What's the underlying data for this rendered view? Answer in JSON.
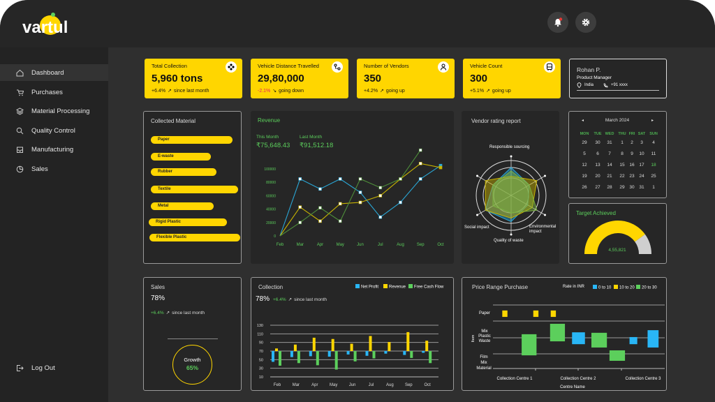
{
  "app": {
    "brand": "vartul"
  },
  "header": {
    "icons": [
      "bell-icon",
      "gear-icon"
    ]
  },
  "sidebar": {
    "items": [
      {
        "label": "Dashboard",
        "icon": "home-icon",
        "active": true
      },
      {
        "label": "Purchases",
        "icon": "cart-icon"
      },
      {
        "label": "Material Processing",
        "icon": "layers-icon"
      },
      {
        "label": "Quality Control",
        "icon": "search-icon"
      },
      {
        "label": "Manufacturing",
        "icon": "inbox-icon"
      },
      {
        "label": "Sales",
        "icon": "pie-icon"
      }
    ],
    "logout": "Log Out"
  },
  "kpis": [
    {
      "title": "Total Collection",
      "value": "5,960 tons",
      "change": "+6.4%",
      "note": "since last month",
      "icon": "diamond-icon",
      "change_color": "#111111"
    },
    {
      "title": "Vehicle Distance Travelled",
      "value": "29,80,000",
      "change": "-2.1%",
      "note": "going down",
      "icon": "route-icon",
      "change_color": "#e91e63"
    },
    {
      "title": "Number of Vendors",
      "value": "350",
      "change": "+4.2%",
      "note": "going up",
      "icon": "user-icon",
      "change_color": "#111111"
    },
    {
      "title": "Vehicle Count",
      "value": "300",
      "change": "+5.1%",
      "note": "going up",
      "icon": "bus-icon",
      "change_color": "#111111"
    }
  ],
  "profile": {
    "name": "Rohan P.",
    "role": "Product Manager",
    "location": "India",
    "phone": "+91 xxxx"
  },
  "collected": {
    "title": "Collected Material",
    "items": [
      {
        "label": "Paper",
        "share": 0.9
      },
      {
        "label": "E-waste",
        "share": 0.66
      },
      {
        "label": "Rubber",
        "share": 0.72
      },
      {
        "label": "Textile",
        "share": 0.96
      },
      {
        "label": "Metal",
        "share": 0.69
      },
      {
        "label": "Rigid Plastic",
        "share": 0.86
      },
      {
        "label": "Flexible Plastic",
        "share": 1.0
      }
    ]
  },
  "revenue": {
    "title": "Revenue",
    "this_month_label": "This Month",
    "this_month": "₹75,648.43",
    "last_month_label": "Last Month",
    "last_month": "₹91,512.18"
  },
  "vendor": {
    "title": "Vendor rating report",
    "axes": [
      "Responsible sourcing",
      "Environmental impact",
      "Quality of waste",
      "Social impact"
    ]
  },
  "calendar": {
    "month": "March 2024",
    "days": [
      "MON",
      "TUE",
      "WED",
      "THU",
      "FRI",
      "SAT",
      "SUN"
    ],
    "weeks": [
      [
        "29",
        "30",
        "31",
        "1",
        "2",
        "3",
        "4"
      ],
      [
        "5",
        "6",
        "7",
        "8",
        "9",
        "10",
        "11"
      ],
      [
        "12",
        "13",
        "14",
        "15",
        "16",
        "17",
        "18"
      ],
      [
        "19",
        "20",
        "21",
        "22",
        "23",
        "24",
        "25"
      ],
      [
        "26",
        "27",
        "28",
        "29",
        "30",
        "31",
        "1"
      ]
    ],
    "today": "18"
  },
  "target": {
    "title": "Target Achieved",
    "value": "4,55,821",
    "fraction": 0.8
  },
  "sales": {
    "title": "Sales",
    "value": "78%",
    "change": "+6.4%",
    "note": "since last month",
    "growth_label": "Growth",
    "growth": "65%"
  },
  "collection": {
    "title": "Collection",
    "value": "78%",
    "change": "+6.4%",
    "note": "since last month"
  },
  "price": {
    "title": "Price Range Purchase",
    "legend_title": "Rate in INR"
  },
  "chart_data": [
    {
      "type": "line",
      "categories": [
        "Feb",
        "Mar",
        "Apr",
        "May",
        "Jun",
        "Jul",
        "Aug",
        "Sep",
        "Oct"
      ],
      "ylim": [
        0,
        100000
      ],
      "yticks": [
        0,
        20000,
        40000,
        60000,
        80000,
        100000
      ],
      "series": [
        {
          "color": "#2aa7d6",
          "values": [
            0,
            85000,
            70000,
            85000,
            65000,
            28000,
            50000,
            85000,
            105000
          ]
        },
        {
          "color": "#c9b400",
          "values": [
            0,
            43000,
            22000,
            48000,
            50000,
            60000,
            85000,
            108000,
            102000
          ]
        },
        {
          "color": "#4e8d3a",
          "values": [
            0,
            20000,
            42000,
            22000,
            85000,
            72000,
            85000,
            128000,
            null
          ]
        }
      ]
    },
    {
      "type": "bar",
      "categories": [
        "Feb",
        "Mar",
        "Apr",
        "May",
        "Jun",
        "Jul",
        "Aug",
        "Sep",
        "Oct"
      ],
      "baseline": 70,
      "ylim": [
        10,
        130
      ],
      "yticks": [
        10,
        30,
        50,
        70,
        90,
        110,
        130
      ],
      "series": [
        {
          "name": "Net Profit",
          "color": "#29b6f6",
          "values": [
            45,
            56,
            58,
            57,
            62,
            59,
            64,
            61,
            66
          ]
        },
        {
          "name": "Revenue",
          "color": "#FFD600",
          "values": [
            76,
            85,
            101,
            98,
            87,
            105,
            91,
            114,
            94
          ]
        },
        {
          "name": "Free Cash Flow",
          "color": "#5ccf5c",
          "values": [
            36,
            42,
            37,
            27,
            46,
            53,
            null,
            54,
            42
          ]
        }
      ],
      "legend": "top-right"
    },
    {
      "type": "floating-range",
      "xlabel": "Centre Name",
      "ylabel": "Item",
      "xcategories": [
        "Collection Centre 1",
        "Collection Centre 2",
        "Collection Centre 3"
      ],
      "ycategories": [
        "Film Mix Material",
        "Mix Plastic Waste",
        "Paper"
      ],
      "legend": [
        {
          "name": "0 to 10",
          "color": "#29b6f6"
        },
        {
          "name": "10 to 20",
          "color": "#FFD600"
        },
        {
          "name": "20 to 30",
          "color": "#5ccf5c"
        }
      ],
      "boxes": [
        {
          "range": "10 to 20",
          "x": [
            0.82,
            0.9
          ],
          "y": [
            2.91,
            3.18
          ]
        },
        {
          "range": "10 to 20",
          "x": [
            1.3,
            1.38
          ],
          "y": [
            2.91,
            3.18
          ]
        },
        {
          "range": "10 to 20",
          "x": [
            1.57,
            1.65
          ],
          "y": [
            2.91,
            3.18
          ]
        },
        {
          "range": "20 to 30",
          "x": [
            1.12,
            1.35
          ],
          "y": [
            1.29,
            2.18
          ]
        },
        {
          "range": "20 to 30",
          "x": [
            1.56,
            1.79
          ],
          "y": [
            1.88,
            2.62
          ]
        },
        {
          "range": "0 to 10",
          "x": [
            1.9,
            2.1
          ],
          "y": [
            1.76,
            2.26
          ]
        },
        {
          "range": "20 to 30",
          "x": [
            2.2,
            2.44
          ],
          "y": [
            1.62,
            2.24
          ]
        },
        {
          "range": "20 to 30",
          "x": [
            2.48,
            2.72
          ],
          "y": [
            1.06,
            1.5
          ]
        },
        {
          "range": "0 to 10",
          "x": [
            2.79,
            2.91
          ],
          "y": [
            1.76,
            2.06
          ]
        },
        {
          "range": "0 to 10",
          "x": [
            3.07,
            3.24
          ],
          "y": [
            1.62,
            2.35
          ]
        }
      ]
    },
    {
      "type": "radar",
      "axes": [
        "Responsible sourcing",
        "",
        "Environmental impact",
        "Quality of waste",
        "Social impact",
        ""
      ],
      "series": [
        {
          "color": "#2aa7d6",
          "values": [
            0.8,
            0.6,
            0.55,
            0.75,
            0.85,
            0.6
          ]
        },
        {
          "color": "#c9b400",
          "values": [
            0.55,
            0.85,
            0.7,
            0.65,
            0.85,
            0.85
          ]
        },
        {
          "color": "#7cb342",
          "values": [
            0.7,
            0.6,
            0.85,
            0.5,
            0.6,
            0.6
          ]
        }
      ]
    }
  ]
}
